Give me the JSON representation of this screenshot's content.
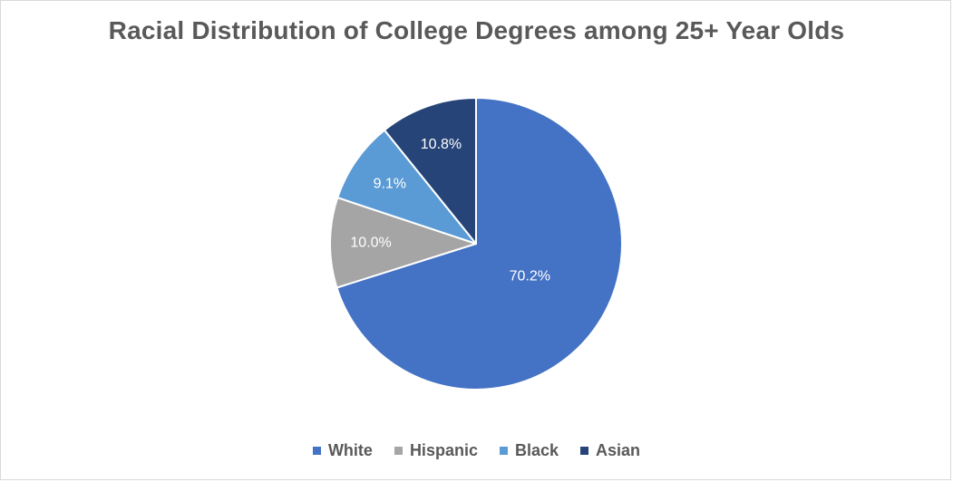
{
  "chart_data": {
    "type": "pie",
    "title": "Racial Distribution of College Degrees among 25+ Year Olds",
    "legend_position": "bottom",
    "slices": [
      {
        "label": "White",
        "value": 70.2,
        "display": "70.2%",
        "color": "#4472C4",
        "label_color": "#FFFFFF"
      },
      {
        "label": "Hispanic",
        "value": 10.0,
        "display": "10.0%",
        "color": "#A5A5A5",
        "label_color": "#FFFFFF"
      },
      {
        "label": "Black",
        "value": 9.1,
        "display": "9.1%",
        "color": "#5B9BD5",
        "label_color": "#FFFFFF"
      },
      {
        "label": "Asian",
        "value": 10.8,
        "display": "10.8%",
        "color": "#264478",
        "label_color": "#FFFFFF"
      }
    ]
  }
}
